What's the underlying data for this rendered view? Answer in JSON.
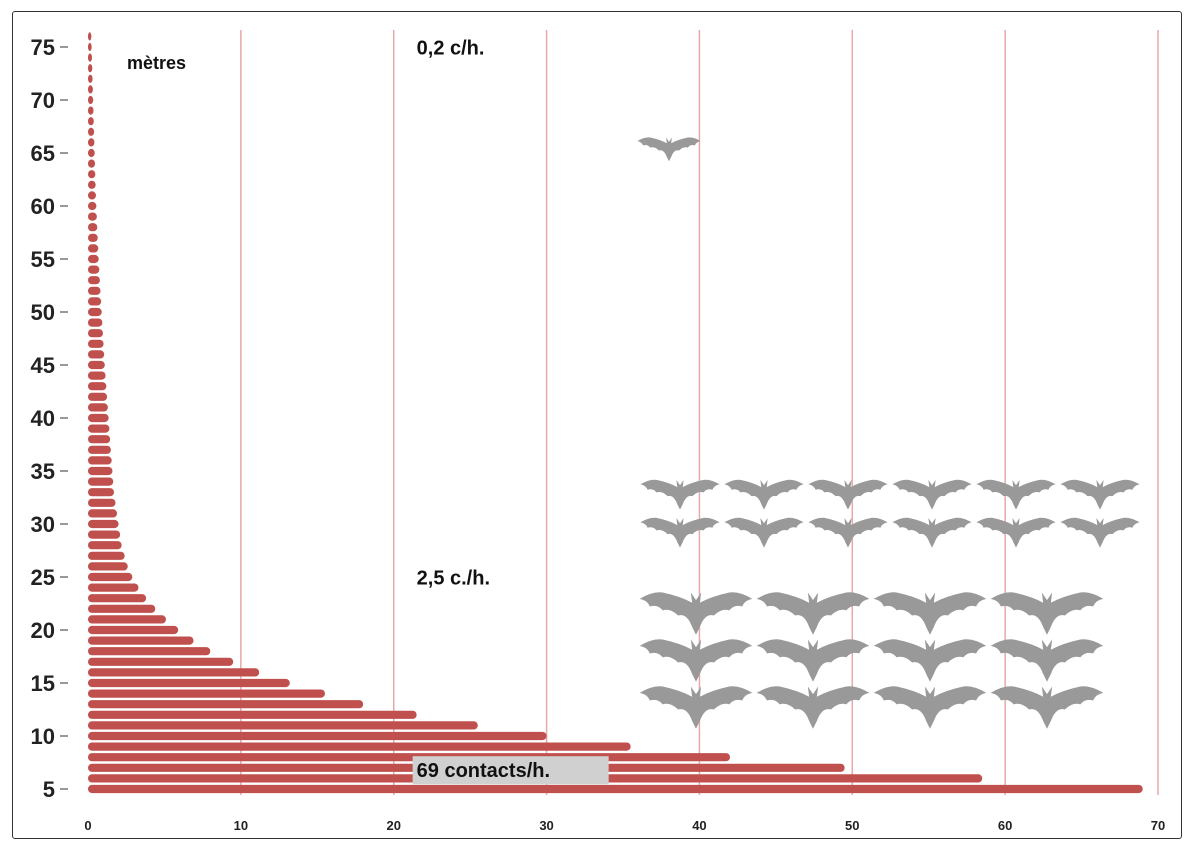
{
  "chart_data": {
    "type": "bar",
    "orientation": "horizontal",
    "y_unit_label": "mètres",
    "y_ticks": [
      "5",
      "10",
      "15",
      "20",
      "25",
      "30",
      "35",
      "40",
      "45",
      "50",
      "55",
      "60",
      "65",
      "70",
      "75"
    ],
    "x_ticks": [
      "0",
      "10",
      "20",
      "30",
      "40",
      "50",
      "60",
      "70"
    ],
    "xlim": [
      0,
      70
    ],
    "ylim": [
      5,
      76
    ],
    "grid": "vertical",
    "bar_color": "#c0504d",
    "gridline_color": "#e8a8a8",
    "bat_color": "#999999",
    "series": [
      {
        "y": [
          5,
          6,
          7,
          8,
          9,
          10,
          11,
          12,
          13,
          14,
          15,
          16,
          17,
          18,
          19,
          20,
          21,
          22,
          23,
          24,
          25,
          26,
          27,
          28,
          29,
          30,
          31,
          32,
          33,
          34,
          35,
          36,
          37,
          38,
          39,
          40,
          41,
          42,
          43,
          44,
          45,
          46,
          47,
          48,
          49,
          50,
          51,
          52,
          53,
          54,
          55,
          56,
          57,
          58,
          59,
          60,
          61,
          62,
          63,
          64,
          65,
          66,
          67,
          68,
          69,
          70,
          71,
          72,
          73,
          74,
          75,
          76
        ],
        "values": [
          69,
          58.5,
          49.5,
          42,
          35.5,
          30,
          25.5,
          21.5,
          18,
          15.5,
          13.2,
          11.2,
          9.5,
          8,
          6.9,
          5.9,
          5.1,
          4.4,
          3.8,
          3.3,
          2.9,
          2.6,
          2.4,
          2.2,
          2.1,
          2.0,
          1.9,
          1.8,
          1.7,
          1.65,
          1.6,
          1.55,
          1.5,
          1.45,
          1.4,
          1.35,
          1.3,
          1.25,
          1.2,
          1.15,
          1.1,
          1.06,
          1.02,
          0.98,
          0.94,
          0.9,
          0.86,
          0.82,
          0.78,
          0.74,
          0.7,
          0.67,
          0.64,
          0.61,
          0.58,
          0.55,
          0.52,
          0.5,
          0.48,
          0.46,
          0.44,
          0.42,
          0.4,
          0.38,
          0.36,
          0.34,
          0.32,
          0.3,
          0.28,
          0.26,
          0.24,
          0.22
        ]
      }
    ],
    "annotations": [
      {
        "text": "0,2 c/h.",
        "x": 21.5,
        "y": 74.5,
        "highlight": false
      },
      {
        "text": "2,5 c./h.",
        "x": 21.5,
        "y": 24.5,
        "highlight": false
      },
      {
        "text": "69 contacts/h.",
        "x": 21.5,
        "y": 6.3,
        "highlight": true
      }
    ],
    "bat_icons": [
      {
        "label": "0,2 c/h.",
        "count": 1,
        "rows": 1,
        "per_row": 1
      },
      {
        "label": "2,5 c./h.",
        "count": 12,
        "rows": 2,
        "per_row": 6
      },
      {
        "label": "69 contacts/h.",
        "count": 12,
        "rows": 3,
        "per_row": 4
      }
    ]
  }
}
